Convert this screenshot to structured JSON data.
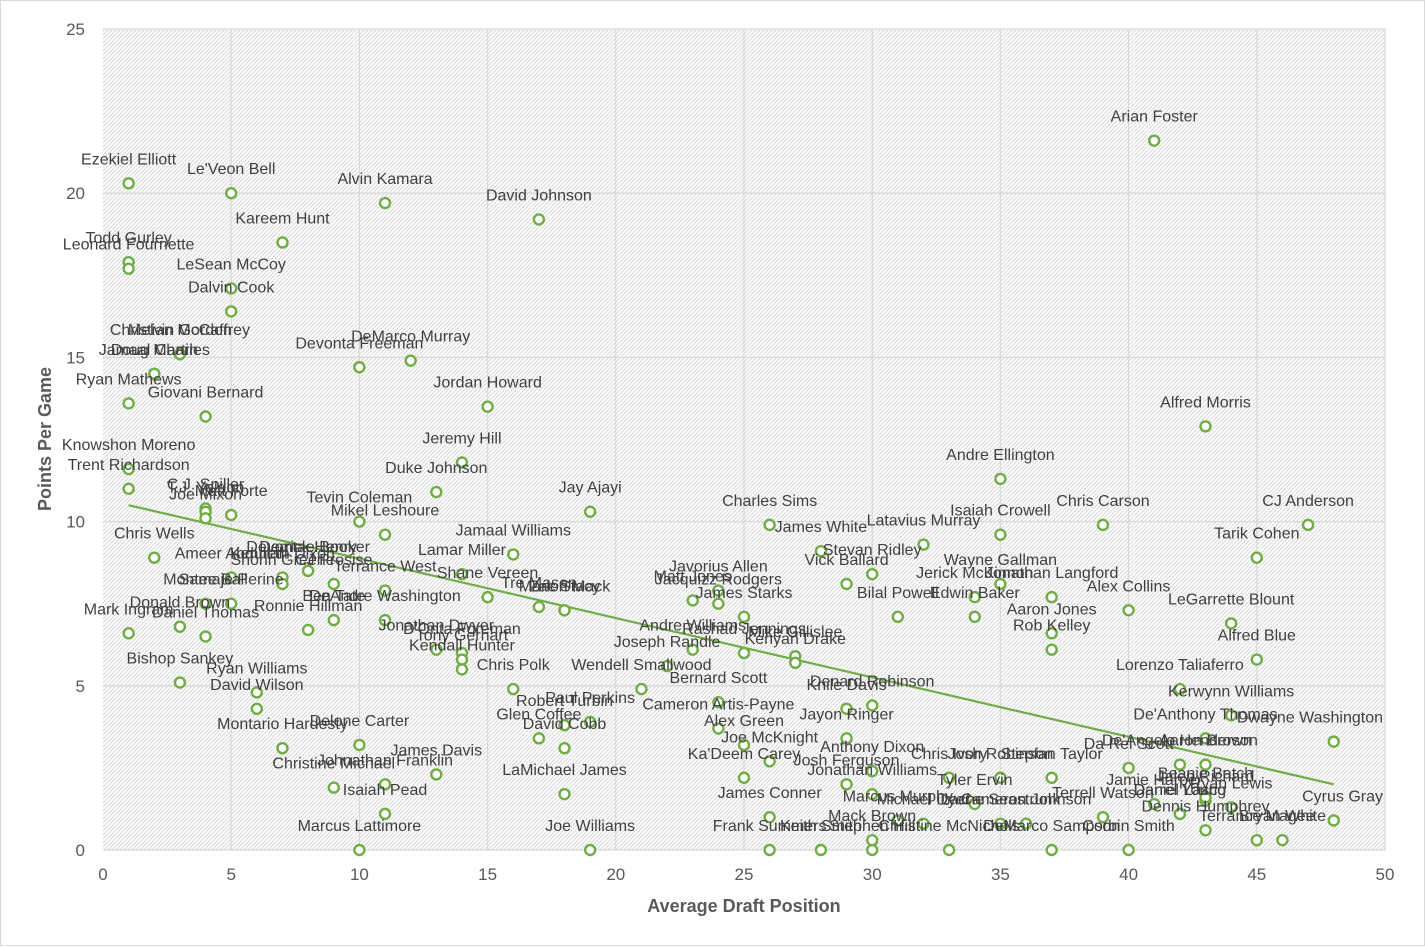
{
  "chart_data": {
    "type": "scatter",
    "title": "",
    "xlabel": "Average Draft Position",
    "ylabel": "Points Per Game",
    "xlim": [
      0,
      50
    ],
    "ylim": [
      0,
      25
    ],
    "xticks": [
      "0",
      "5",
      "10",
      "15",
      "20",
      "25",
      "30",
      "35",
      "40",
      "45",
      "50"
    ],
    "yticks": [
      "0",
      "5",
      "10",
      "15",
      "20",
      "25"
    ],
    "grid": true,
    "legend": "none",
    "marker_color": "#70ad47",
    "trendline_color": "#70ad47",
    "trendline": {
      "x": [
        1,
        48
      ],
      "y": [
        10.5,
        2.0
      ]
    },
    "points": [
      {
        "name": "Ezekiel Elliott",
        "x": 1,
        "y": 20.3
      },
      {
        "name": "Le'Veon Bell",
        "x": 5,
        "y": 20.0
      },
      {
        "name": "Alvin Kamara",
        "x": 11,
        "y": 19.7
      },
      {
        "name": "David Johnson",
        "x": 17,
        "y": 19.2
      },
      {
        "name": "Arian Foster",
        "x": 41,
        "y": 21.6
      },
      {
        "name": "Todd Gurley",
        "x": 1,
        "y": 17.9
      },
      {
        "name": "Leonard Fournette",
        "x": 1,
        "y": 17.7
      },
      {
        "name": "Kareem Hunt",
        "x": 7,
        "y": 18.5
      },
      {
        "name": "LeSean McCoy",
        "x": 5,
        "y": 17.1
      },
      {
        "name": "Dalvin Cook",
        "x": 5,
        "y": 16.4
      },
      {
        "name": "Melvin Gordon",
        "x": 3,
        "y": 15.1
      },
      {
        "name": "Christian McCaffrey",
        "x": 3,
        "y": 15.1
      },
      {
        "name": "Jamaal Charles",
        "x": 2,
        "y": 14.5
      },
      {
        "name": "Doug Martin",
        "x": 2,
        "y": 14.5
      },
      {
        "name": "Ryan Mathews",
        "x": 1,
        "y": 13.6
      },
      {
        "name": "Giovani Bernard",
        "x": 4,
        "y": 13.2
      },
      {
        "name": "DeMarco Murray",
        "x": 12,
        "y": 14.9
      },
      {
        "name": "Devonta Freeman",
        "x": 10,
        "y": 14.7
      },
      {
        "name": "Jordan Howard",
        "x": 15,
        "y": 13.5
      },
      {
        "name": "Alfred Morris",
        "x": 43,
        "y": 12.9
      },
      {
        "name": "Knowshon Moreno",
        "x": 1,
        "y": 11.6
      },
      {
        "name": "Trent Richardson",
        "x": 1,
        "y": 11.0
      },
      {
        "name": "Jeremy Hill",
        "x": 14,
        "y": 11.8
      },
      {
        "name": "Duke Johnson",
        "x": 13,
        "y": 10.9
      },
      {
        "name": "C.J. Spiller",
        "x": 4,
        "y": 10.4
      },
      {
        "name": "T.J. Yeldon",
        "x": 4,
        "y": 10.3
      },
      {
        "name": "Joe Mixon",
        "x": 4,
        "y": 10.1
      },
      {
        "name": "Matt Forte",
        "x": 5,
        "y": 10.2
      },
      {
        "name": "Tevin Coleman",
        "x": 10,
        "y": 10.0
      },
      {
        "name": "Mikel Leshoure",
        "x": 11,
        "y": 9.6
      },
      {
        "name": "Jay Ajayi",
        "x": 19,
        "y": 10.3
      },
      {
        "name": "Andre Ellington",
        "x": 35,
        "y": 11.3
      },
      {
        "name": "Isaiah Crowell",
        "x": 35,
        "y": 9.6
      },
      {
        "name": "Chris Carson",
        "x": 39,
        "y": 9.9
      },
      {
        "name": "CJ Anderson",
        "x": 47,
        "y": 9.9
      },
      {
        "name": "Charles Sims",
        "x": 26,
        "y": 9.9
      },
      {
        "name": "Chris Wells",
        "x": 2,
        "y": 8.9
      },
      {
        "name": "Ameer Abdullah",
        "x": 5,
        "y": 8.3
      },
      {
        "name": "Kenneth Dixon",
        "x": 7,
        "y": 8.3
      },
      {
        "name": "Shonn Greene",
        "x": 7,
        "y": 8.1
      },
      {
        "name": "Devontae Booker",
        "x": 8,
        "y": 8.5
      },
      {
        "name": "Terrance West",
        "x": 11,
        "y": 7.9
      },
      {
        "name": "Jamaal Williams",
        "x": 16,
        "y": 9.0
      },
      {
        "name": "Lamar Miller",
        "x": 14,
        "y": 8.4
      },
      {
        "name": "Shane Vereen",
        "x": 15,
        "y": 7.7
      },
      {
        "name": "Tre Mason",
        "x": 17,
        "y": 7.4
      },
      {
        "name": "Zac Stacy",
        "x": 18,
        "y": 7.3
      },
      {
        "name": "Marlon Mack",
        "x": 18,
        "y": 7.3
      },
      {
        "name": "James White",
        "x": 28,
        "y": 9.1
      },
      {
        "name": "Vick Ballard",
        "x": 29,
        "y": 8.1
      },
      {
        "name": "Stevan Ridley",
        "x": 30,
        "y": 8.4
      },
      {
        "name": "Latavius Murray",
        "x": 32,
        "y": 9.3
      },
      {
        "name": "Wayne Gallman",
        "x": 35,
        "y": 8.1
      },
      {
        "name": "Jerick McKinnon",
        "x": 34,
        "y": 7.7
      },
      {
        "name": "Jonathan Langford",
        "x": 37,
        "y": 7.7
      },
      {
        "name": "Alex Collins",
        "x": 40,
        "y": 7.3
      },
      {
        "name": "Tarik Cohen",
        "x": 45,
        "y": 8.9
      },
      {
        "name": "Javorius Allen",
        "x": 24,
        "y": 7.9
      },
      {
        "name": "Matt Jones",
        "x": 23,
        "y": 7.6
      },
      {
        "name": "Jacquizz Rodgers",
        "x": 24,
        "y": 7.5
      },
      {
        "name": "James Starks",
        "x": 25,
        "y": 7.1
      },
      {
        "name": "Bilal Powell",
        "x": 31,
        "y": 7.1
      },
      {
        "name": "Edwin Baker",
        "x": 34,
        "y": 7.1
      },
      {
        "name": "LeGarrette Blount",
        "x": 44,
        "y": 6.9
      },
      {
        "name": "Donald Brown",
        "x": 3,
        "y": 6.8
      },
      {
        "name": "Derrick Henry",
        "x": 8,
        "y": 8.5
      },
      {
        "name": "CJ Prosise",
        "x": 9,
        "y": 8.1
      },
      {
        "name": "Ben Tate",
        "x": 9,
        "y": 7.0
      },
      {
        "name": "Montee Ball",
        "x": 4,
        "y": 7.5
      },
      {
        "name": "Samaje Perine",
        "x": 5,
        "y": 7.5
      },
      {
        "name": "Mark Ingram",
        "x": 1,
        "y": 6.6
      },
      {
        "name": "Daniel Thomas",
        "x": 4,
        "y": 6.5
      },
      {
        "name": "Ronnie Hillman",
        "x": 8,
        "y": 6.7
      },
      {
        "name": "DeAndre Washington",
        "x": 11,
        "y": 7.0
      },
      {
        "name": "Jonathan Dwyer",
        "x": 13,
        "y": 6.1
      },
      {
        "name": "D'Onta Foreman",
        "x": 14,
        "y": 6.0
      },
      {
        "name": "Tony Gerhart",
        "x": 14,
        "y": 5.8
      },
      {
        "name": "Aaron Jones",
        "x": 37,
        "y": 6.6
      },
      {
        "name": "Rob Kelley",
        "x": 37,
        "y": 6.1
      },
      {
        "name": "Alfred Blue",
        "x": 45,
        "y": 5.8
      },
      {
        "name": "Rashad Jennings",
        "x": 25,
        "y": 6.0
      },
      {
        "name": "Mike Gillislee",
        "x": 27,
        "y": 5.9
      },
      {
        "name": "Andre Williams",
        "x": 23,
        "y": 6.1
      },
      {
        "name": "Kenyan Drake",
        "x": 27,
        "y": 5.7
      },
      {
        "name": "Kendall Hunter",
        "x": 14,
        "y": 5.5
      },
      {
        "name": "Joseph Randle",
        "x": 22,
        "y": 5.6
      },
      {
        "name": "Bishop Sankey",
        "x": 3,
        "y": 5.1
      },
      {
        "name": "Ryan Williams",
        "x": 6,
        "y": 4.8
      },
      {
        "name": "David Wilson",
        "x": 6,
        "y": 4.3
      },
      {
        "name": "Wendell Smallwood",
        "x": 21,
        "y": 4.9
      },
      {
        "name": "Chris Polk",
        "x": 16,
        "y": 4.9
      },
      {
        "name": "Denard Robinson",
        "x": 30,
        "y": 4.4
      },
      {
        "name": "Knile Davis",
        "x": 29,
        "y": 4.3
      },
      {
        "name": "Lorenzo Taliaferro",
        "x": 42,
        "y": 4.9
      },
      {
        "name": "Paul Perkins",
        "x": 19,
        "y": 3.9
      },
      {
        "name": "Robert Turbin",
        "x": 18,
        "y": 3.8
      },
      {
        "name": "Bernard Scott",
        "x": 24,
        "y": 4.5
      },
      {
        "name": "Cameron Artis-Payne",
        "x": 24,
        "y": 3.7
      },
      {
        "name": "Jayon Ringer",
        "x": 29,
        "y": 3.4
      },
      {
        "name": "Kerwynn Williams",
        "x": 44,
        "y": 4.1
      },
      {
        "name": "De'Anthony Thomas",
        "x": 43,
        "y": 3.4
      },
      {
        "name": "Dwayne Washington",
        "x": 48,
        "y": 3.3
      },
      {
        "name": "Montario Hardesty",
        "x": 7,
        "y": 3.1
      },
      {
        "name": "Delone Carter",
        "x": 10,
        "y": 3.2
      },
      {
        "name": "Glen Coffee",
        "x": 17,
        "y": 3.4
      },
      {
        "name": "David Cobb",
        "x": 18,
        "y": 3.1
      },
      {
        "name": "Alex Green",
        "x": 25,
        "y": 3.2
      },
      {
        "name": "Ka'Deem Carey",
        "x": 25,
        "y": 2.2
      },
      {
        "name": "Joe McKnight",
        "x": 26,
        "y": 2.7
      },
      {
        "name": "Anthony Dixon",
        "x": 30,
        "y": 2.4
      },
      {
        "name": "Josh Ferguson",
        "x": 29,
        "y": 2.0
      },
      {
        "name": "Chris Ivory",
        "x": 33,
        "y": 2.2
      },
      {
        "name": "Josh Robinson",
        "x": 35,
        "y": 2.2
      },
      {
        "name": "Stepfan Taylor",
        "x": 37,
        "y": 2.2
      },
      {
        "name": "De'Angelo Henderson",
        "x": 42,
        "y": 2.6
      },
      {
        "name": "Aaron Brown",
        "x": 43,
        "y": 2.6
      },
      {
        "name": "Da Rel Scott",
        "x": 40,
        "y": 2.5
      },
      {
        "name": "James Davis",
        "x": 13,
        "y": 2.3
      },
      {
        "name": "Johnathan Franklin",
        "x": 11,
        "y": 2.0
      },
      {
        "name": "Christine Michael",
        "x": 9,
        "y": 1.9
      },
      {
        "name": "Isaiah Pead",
        "x": 11,
        "y": 1.1
      },
      {
        "name": "LaMichael James",
        "x": 18,
        "y": 1.7
      },
      {
        "name": "James Conner",
        "x": 26,
        "y": 1.0
      },
      {
        "name": "Jonathan Williams",
        "x": 30,
        "y": 1.7
      },
      {
        "name": "Tyler Ervin",
        "x": 34,
        "y": 1.4
      },
      {
        "name": "Terrell Watson",
        "x": 39,
        "y": 1.0
      },
      {
        "name": "Jamie Harper",
        "x": 41,
        "y": 1.4
      },
      {
        "name": "Darrel Young",
        "x": 42,
        "y": 1.1
      },
      {
        "name": "Jalen Richard",
        "x": 43,
        "y": 1.5
      },
      {
        "name": "Ryan Lewis",
        "x": 44,
        "y": 1.3
      },
      {
        "name": "Beanie Batch",
        "x": 43,
        "y": 1.6
      },
      {
        "name": "Daniel Lasco",
        "x": 42,
        "y": 1.1
      },
      {
        "name": "Marcus Murphy",
        "x": 31,
        "y": 0.9
      },
      {
        "name": "Michael Dyer",
        "x": 32,
        "y": 0.8
      },
      {
        "name": "Cameron Johnson",
        "x": 36,
        "y": 0.8
      },
      {
        "name": "Marcus Lattimore",
        "x": 10,
        "y": 0.0
      },
      {
        "name": "Joe Williams",
        "x": 19,
        "y": 0.0
      },
      {
        "name": "Frank Summers",
        "x": 26,
        "y": 0.0
      },
      {
        "name": "Keith Smith",
        "x": 28,
        "y": 0.0
      },
      {
        "name": "Stephen Hill",
        "x": 30,
        "y": 0.0
      },
      {
        "name": "Mack Brown",
        "x": 30,
        "y": 0.3
      },
      {
        "name": "Christine McNichols",
        "x": 33,
        "y": 0.0
      },
      {
        "name": "Lache Seastrunk",
        "x": 35,
        "y": 0.8
      },
      {
        "name": "DeMarco Sampson",
        "x": 37,
        "y": 0.0
      },
      {
        "name": "Corbin Smith",
        "x": 40,
        "y": 0.0
      },
      {
        "name": "Dennis Humphrey",
        "x": 43,
        "y": 0.6
      },
      {
        "name": "Terrance Magee",
        "x": 45,
        "y": 0.3
      },
      {
        "name": "Bryan White",
        "x": 46,
        "y": 0.3
      },
      {
        "name": "Cyrus Gray",
        "x": 48,
        "y": 0.9
      }
    ]
  }
}
